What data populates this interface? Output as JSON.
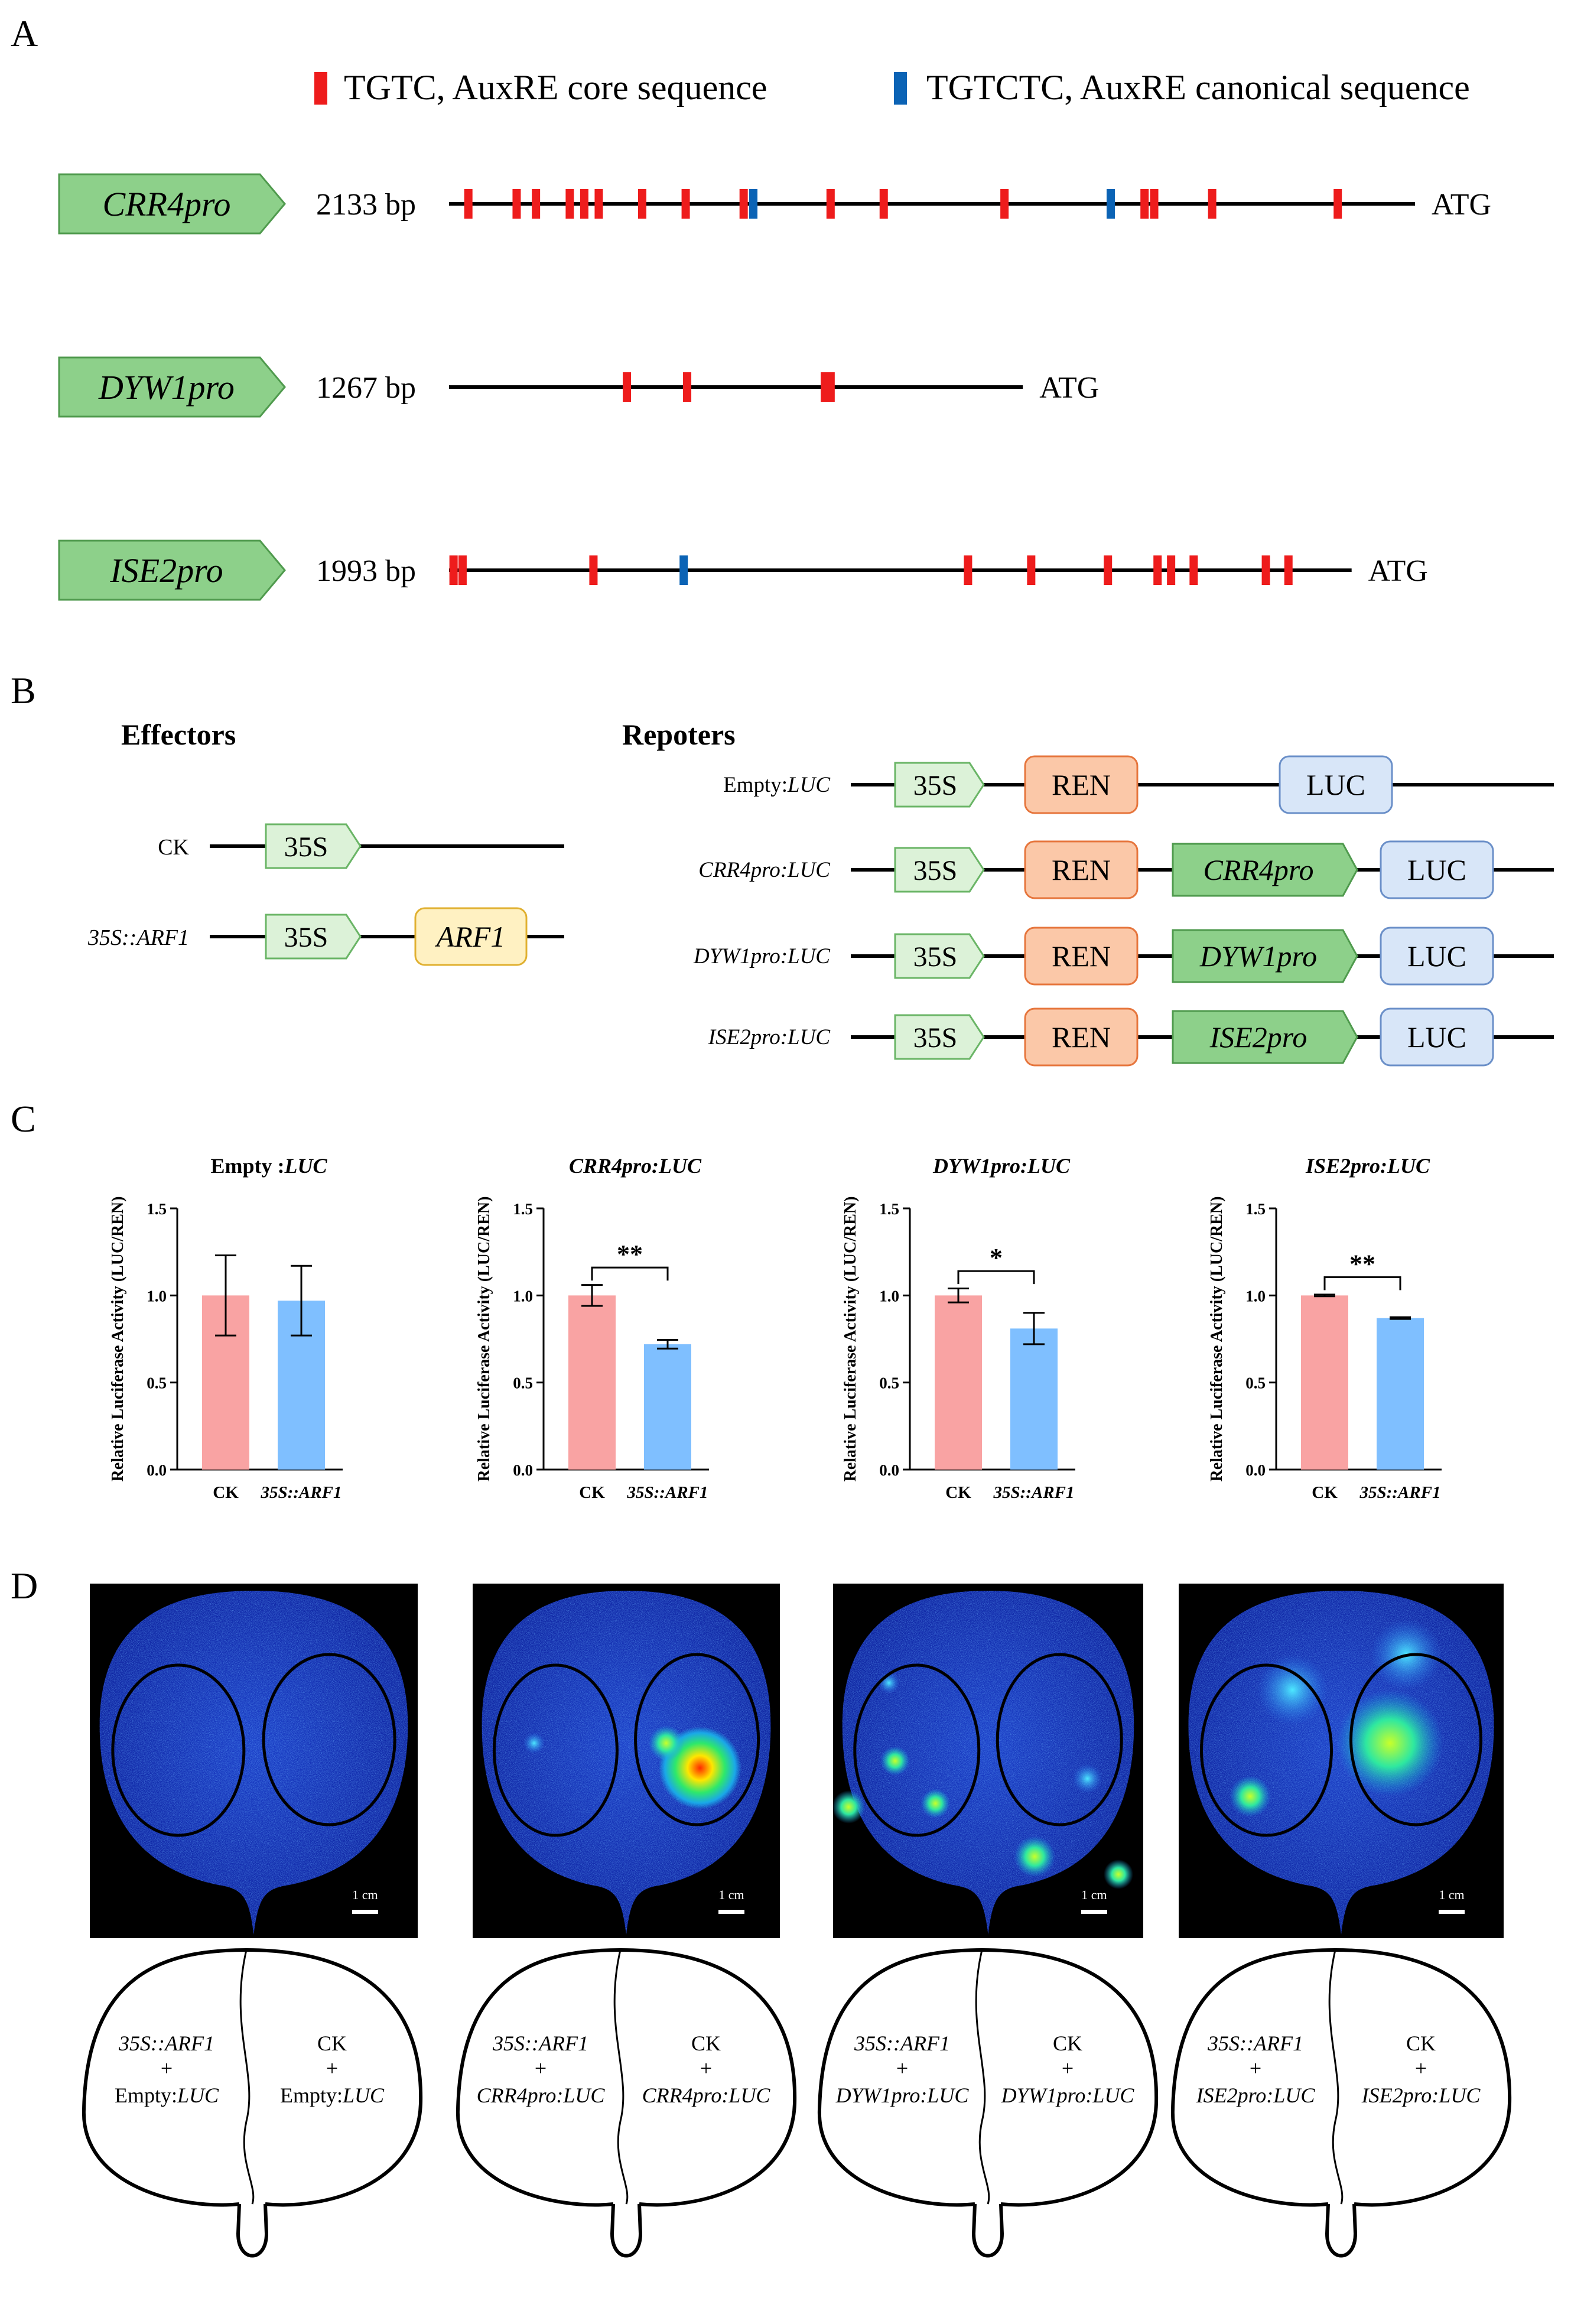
{
  "panels": {
    "a": "A",
    "b": "B",
    "c": "C",
    "d": "D"
  },
  "legend": {
    "core": {
      "label": "TGTC, AuxRE core sequence",
      "color": "#ee1c1c"
    },
    "canonical": {
      "label": "TGTCTC, AuxRE canonical sequence",
      "color": "#0b63b5"
    }
  },
  "promoters": [
    {
      "name": "CRR4pro",
      "length": "2133 bp",
      "end": "ATG",
      "length_bp": 2133,
      "core_sites": [
        0.02,
        0.07,
        0.09,
        0.125,
        0.14,
        0.155,
        0.2,
        0.245,
        0.305,
        0.395,
        0.45,
        0.575,
        0.72,
        0.73,
        0.79,
        0.92
      ],
      "canonical_sites": [
        0.315,
        0.685
      ]
    },
    {
      "name": "DYW1pro",
      "length": "1267 bp",
      "end": "ATG",
      "length_bp": 1267,
      "core_sites": [
        0.31,
        0.415,
        0.655,
        0.665
      ],
      "canonical_sites": []
    },
    {
      "name": "ISE2pro",
      "length": "1993 bp",
      "end": "ATG",
      "length_bp": 1993,
      "core_sites": [
        0.005,
        0.015,
        0.16,
        0.575,
        0.645,
        0.73,
        0.785,
        0.8,
        0.825,
        0.905,
        0.93
      ],
      "canonical_sites": [
        0.26
      ]
    }
  ],
  "effectors": {
    "title": "Effectors",
    "rows": [
      {
        "label": "CK",
        "promoter": "35S",
        "gene": ""
      },
      {
        "label": "35S::ARF1",
        "promoter": "35S",
        "gene": "ARF1"
      }
    ]
  },
  "reporters": {
    "title": "Repoters",
    "rows": [
      {
        "label_a": "Empty:",
        "label_b": "LUC",
        "promoter": "35S",
        "ren": "REN",
        "insert": "",
        "luc": "LUC"
      },
      {
        "label_a": "",
        "label_b": "CRR4pro:LUC",
        "promoter": "35S",
        "ren": "REN",
        "insert": "CRR4pro",
        "luc": "LUC"
      },
      {
        "label_a": "",
        "label_b": "DYW1pro:LUC",
        "promoter": "35S",
        "ren": "REN",
        "insert": "DYW1pro",
        "luc": "LUC"
      },
      {
        "label_a": "",
        "label_b": "ISE2pro:LUC",
        "promoter": "35S",
        "ren": "REN",
        "insert": "ISE2pro",
        "luc": "LUC"
      }
    ]
  },
  "chart_data": [
    {
      "type": "bar",
      "title_a": "Empty :",
      "title_b": "LUC",
      "ylabel": "Relative Luciferase Activity (LUC/REN)",
      "categories": [
        "CK",
        "35S::ARF1"
      ],
      "values": [
        1.0,
        0.97
      ],
      "errors": [
        0.23,
        0.2
      ],
      "ylim": [
        0,
        1.5
      ],
      "yticks": [
        "0.0",
        "0.5",
        "1.0",
        "1.5"
      ],
      "significance": ""
    },
    {
      "type": "bar",
      "title_a": "",
      "title_b": "CRR4pro:LUC",
      "ylabel": "Relative Luciferase Activity (LUC/REN)",
      "categories": [
        "CK",
        "35S::ARF1"
      ],
      "values": [
        1.0,
        0.72
      ],
      "errors": [
        0.06,
        0.025
      ],
      "ylim": [
        0,
        1.5
      ],
      "yticks": [
        "0.0",
        "0.5",
        "1.0",
        "1.5"
      ],
      "significance": "**"
    },
    {
      "type": "bar",
      "title_a": "",
      "title_b": "DYW1pro:LUC",
      "ylabel": "Relative Luciferase Activity (LUC/REN)",
      "categories": [
        "CK",
        "35S::ARF1"
      ],
      "values": [
        1.0,
        0.81
      ],
      "errors": [
        0.04,
        0.09
      ],
      "ylim": [
        0,
        1.5
      ],
      "yticks": [
        "0.0",
        "0.5",
        "1.0",
        "1.5"
      ],
      "significance": "*"
    },
    {
      "type": "bar",
      "title_a": "",
      "title_b": "ISE2pro:LUC",
      "ylabel": "Relative Luciferase Activity (LUC/REN)",
      "categories": [
        "CK",
        "35S::ARF1"
      ],
      "values": [
        1.0,
        0.87
      ],
      "errors": [
        0.005,
        0.005
      ],
      "ylim": [
        0,
        1.5
      ],
      "yticks": [
        "0.0",
        "0.5",
        "1.0",
        "1.5"
      ],
      "significance": "**"
    }
  ],
  "bar_colors": {
    "ck": "#f9a3a3",
    "arf1": "#7fbfff"
  },
  "images": {
    "scale_label": "1 cm"
  },
  "schematics": [
    {
      "left_top": "35S::ARF1",
      "plus": "+",
      "left_bottom_a": "Empty:",
      "left_bottom_b": "LUC",
      "right_top": "CK",
      "right_bottom_a": "Empty:",
      "right_bottom_b": "LUC"
    },
    {
      "left_top": "35S::ARF1",
      "plus": "+",
      "left_bottom_a": "",
      "left_bottom_b": "CRR4pro:LUC",
      "right_top": "CK",
      "right_bottom_a": "",
      "right_bottom_b": "CRR4pro:LUC"
    },
    {
      "left_top": "35S::ARF1",
      "plus": "+",
      "left_bottom_a": "",
      "left_bottom_b": "DYW1pro:LUC",
      "right_top": "CK",
      "right_bottom_a": "",
      "right_bottom_b": "DYW1pro:LUC"
    },
    {
      "left_top": "35S::ARF1",
      "plus": "+",
      "left_bottom_a": "",
      "left_bottom_b": "ISE2pro:LUC",
      "right_top": "CK",
      "right_bottom_a": "",
      "right_bottom_b": "ISE2pro:LUC"
    }
  ]
}
